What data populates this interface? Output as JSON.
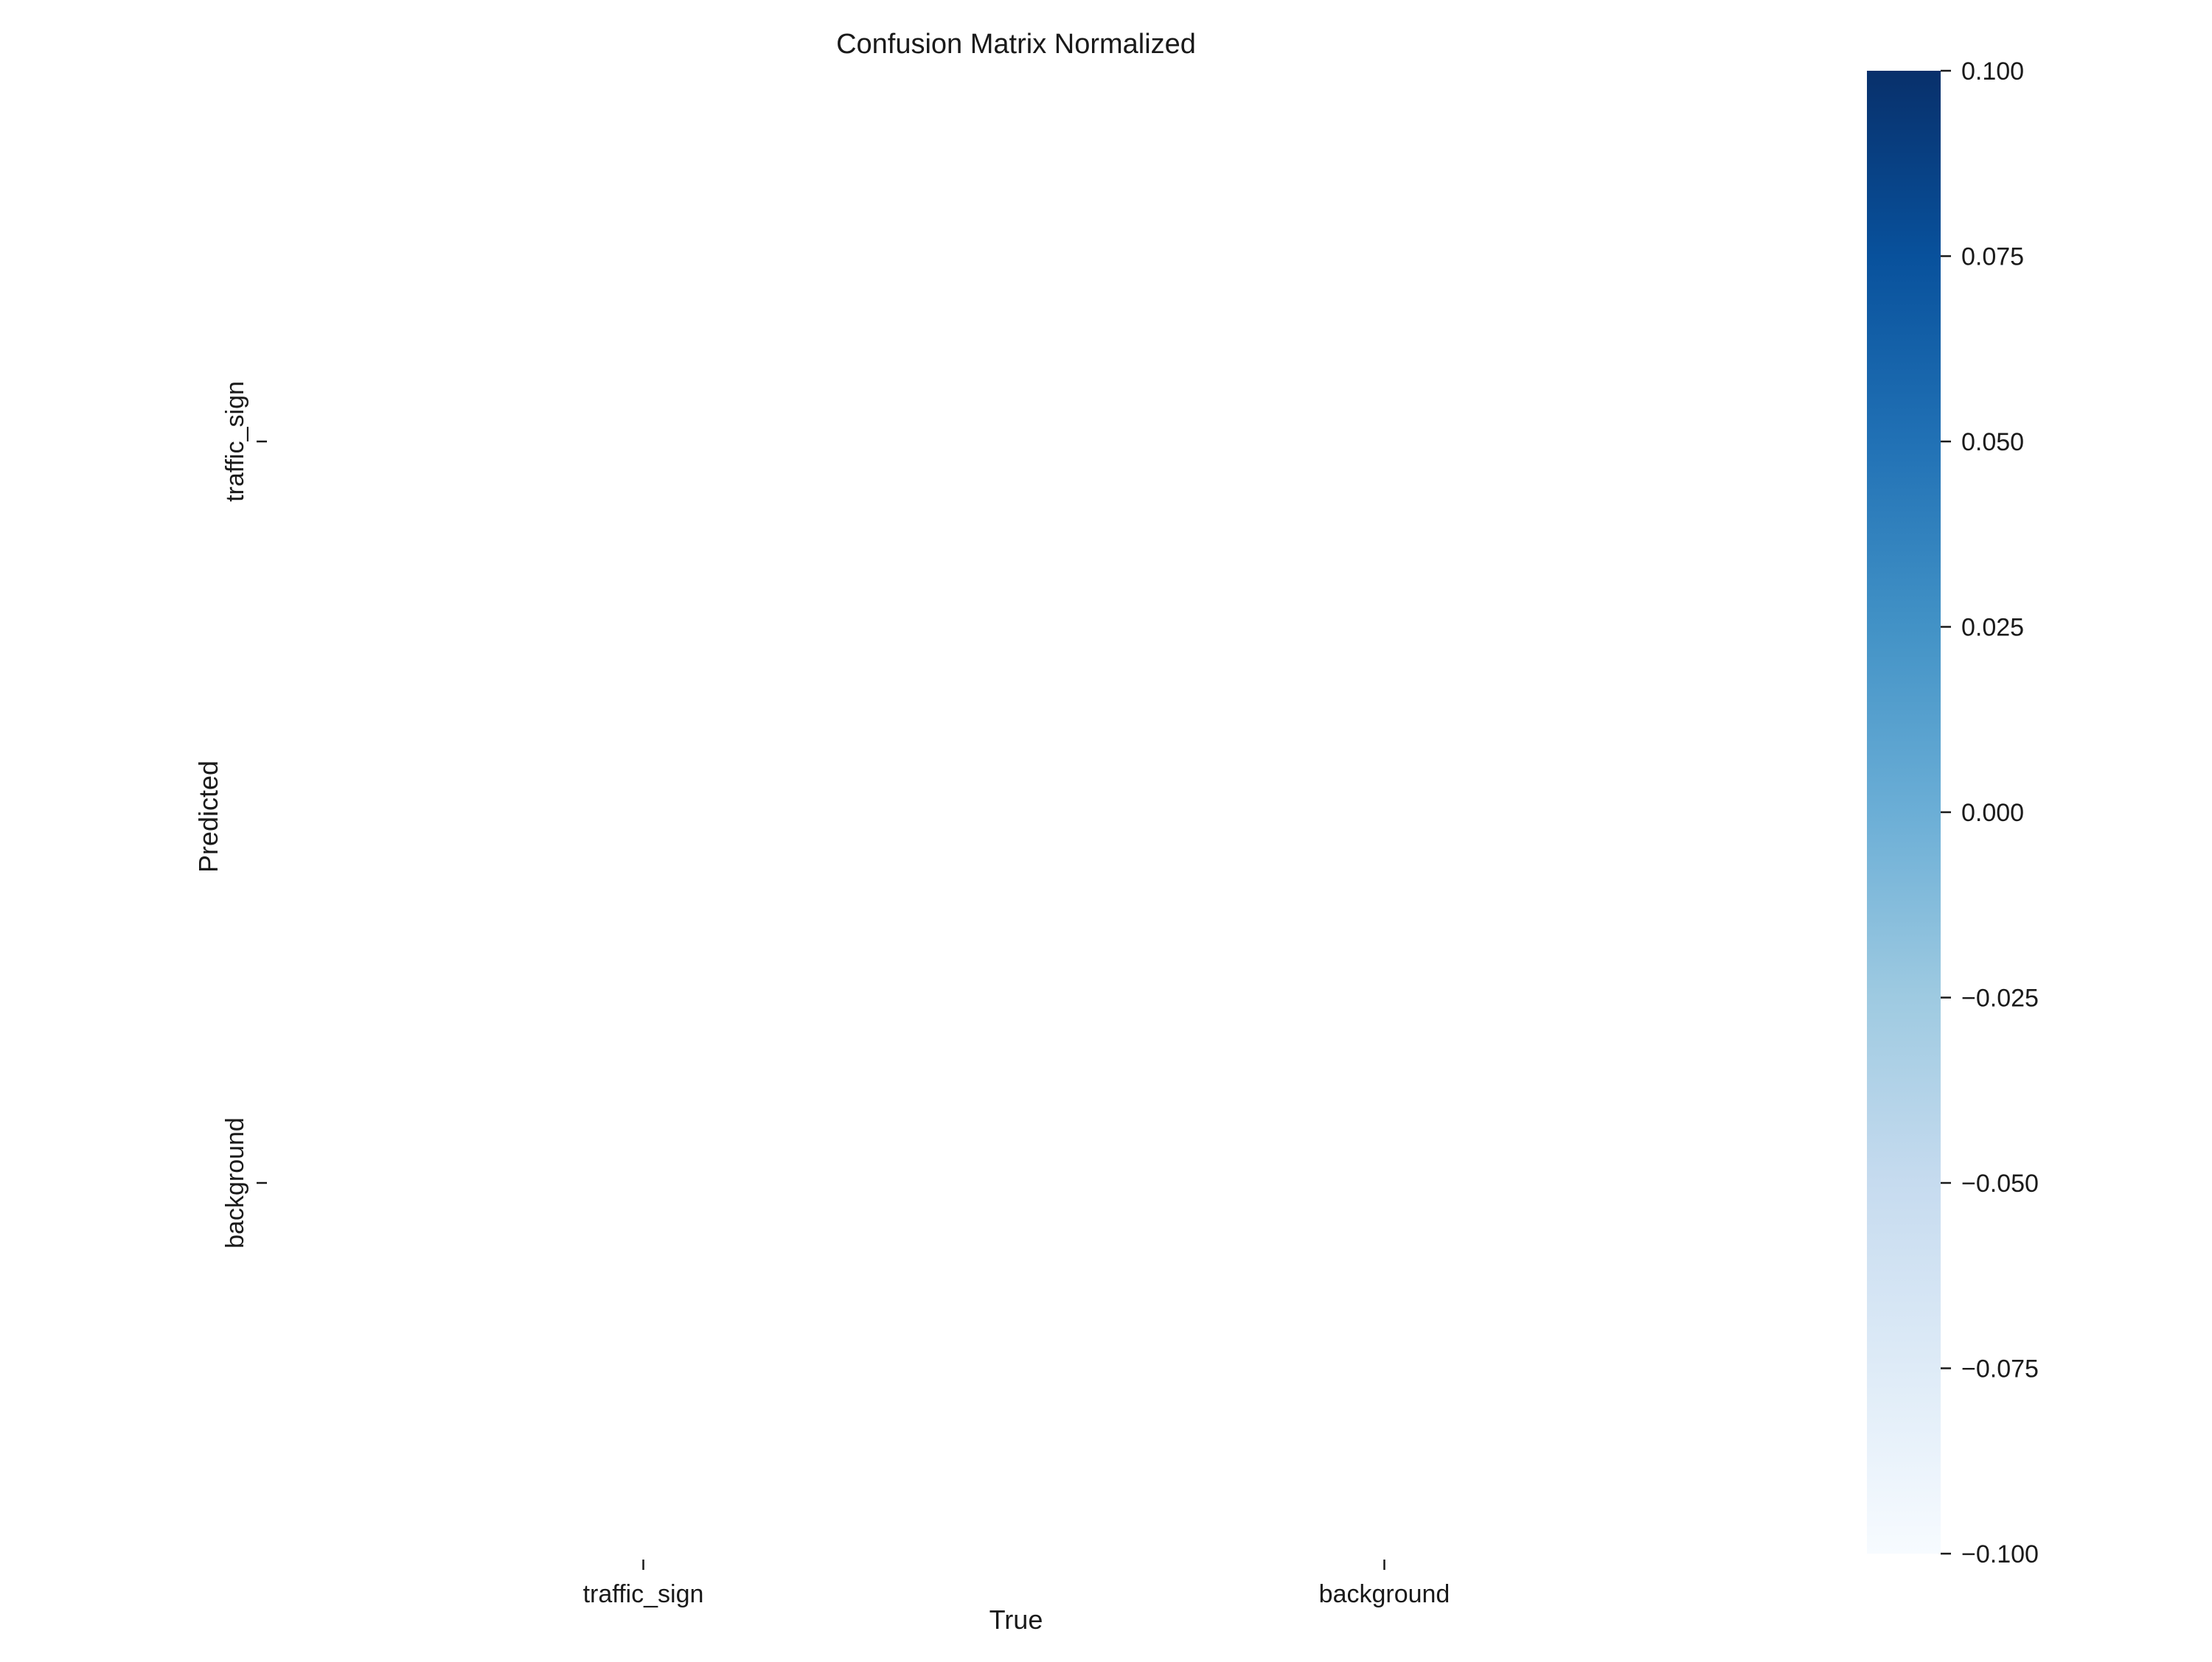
{
  "chart_data": {
    "type": "heatmap",
    "title": "Confusion Matrix Normalized",
    "xlabel": "True",
    "ylabel": "Predicted",
    "x_categories": [
      "traffic_sign",
      "background"
    ],
    "y_categories": [
      "traffic_sign",
      "background"
    ],
    "values": [
      [
        null,
        null
      ],
      [
        null,
        null
      ]
    ],
    "colormap": "Blues",
    "colorbar": {
      "min": -0.1,
      "max": 0.1,
      "ticks": [
        0.1,
        0.075,
        0.05,
        0.025,
        0.0,
        -0.025,
        -0.05,
        -0.075,
        -0.1
      ],
      "tick_labels": [
        "0.100",
        "0.075",
        "0.050",
        "0.025",
        "0.000",
        "−0.025",
        "−0.050",
        "−0.075",
        "−0.100"
      ],
      "color_stops": [
        "#f7fbff",
        "#deebf7",
        "#c6dbef",
        "#9ecae1",
        "#6baed6",
        "#4292c6",
        "#2171b5",
        "#08519c",
        "#08306b"
      ]
    },
    "grid": false,
    "legend": "colorbar-right"
  }
}
